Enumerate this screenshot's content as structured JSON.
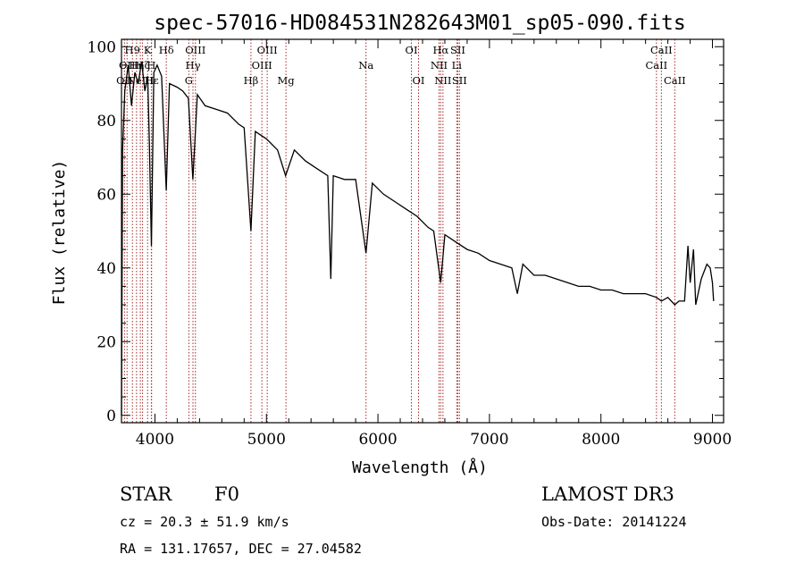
{
  "chart_data": {
    "type": "line",
    "title": "spec-57016-HD084531N282643M01_sp05-090.fits",
    "xlabel": "Wavelength (Å)",
    "ylabel": "Flux (relative)",
    "xlim": [
      3700,
      9100
    ],
    "ylim": [
      -2,
      102
    ],
    "x_ticks": [
      4000,
      5000,
      6000,
      7000,
      8000,
      9000
    ],
    "y_ticks": [
      0,
      20,
      40,
      60,
      80,
      100
    ],
    "grid": false,
    "series": [
      {
        "name": "flux",
        "x": [
          3700,
          3710,
          3730,
          3760,
          3790,
          3820,
          3850,
          3880,
          3910,
          3935,
          3950,
          3968,
          3990,
          4020,
          4060,
          4101,
          4130,
          4200,
          4250,
          4300,
          4340,
          4380,
          4450,
          4550,
          4650,
          4750,
          4800,
          4861,
          4900,
          4950,
          5000,
          5100,
          5172,
          5250,
          5350,
          5450,
          5550,
          5577,
          5600,
          5700,
          5800,
          5893,
          5950,
          6050,
          6150,
          6250,
          6350,
          6450,
          6500,
          6563,
          6600,
          6700,
          6800,
          6900,
          7000,
          7100,
          7200,
          7250,
          7300,
          7400,
          7500,
          7600,
          7700,
          7800,
          7900,
          8000,
          8100,
          8200,
          8300,
          8400,
          8498,
          8542,
          8600,
          8662,
          8700,
          8750,
          8780,
          8800,
          8830,
          8850,
          8900,
          8950,
          8980,
          9000,
          9010
        ],
        "y": [
          0,
          72,
          88,
          95,
          84,
          93,
          90,
          96,
          88,
          92,
          74,
          46,
          93,
          95,
          92,
          61,
          90,
          89,
          88,
          86,
          64,
          87,
          84,
          83,
          82,
          79,
          78,
          50,
          77,
          76,
          75,
          72,
          65,
          72,
          69,
          67,
          65,
          37,
          65,
          64,
          64,
          44,
          63,
          60,
          58,
          56,
          54,
          51,
          50,
          36,
          49,
          47,
          45,
          44,
          42,
          41,
          40,
          33,
          41,
          38,
          38,
          37,
          36,
          35,
          35,
          34,
          34,
          33,
          33,
          33,
          32,
          31,
          32,
          30,
          31,
          31,
          46,
          36,
          45,
          30,
          37,
          41,
          40,
          36,
          31
        ]
      }
    ],
    "emission_lines": [
      {
        "wavelength": 3727,
        "label": "OII",
        "row": 3
      },
      {
        "wavelength": 3750,
        "label": "OII",
        "row": 2
      },
      {
        "wavelength": 3798,
        "label": "H9",
        "row": 1
      },
      {
        "wavelength": 3835,
        "label": "Hη",
        "row": 2
      },
      {
        "wavelength": 3869,
        "label": "NeIII",
        "row": 3
      },
      {
        "wavelength": 3889,
        "label": "Hζ",
        "row": 2
      },
      {
        "wavelength": 3934,
        "label": "K",
        "row": 1
      },
      {
        "wavelength": 3968,
        "label": "H",
        "row": 2
      },
      {
        "wavelength": 3970,
        "label": "Hε",
        "row": 3
      },
      {
        "wavelength": 4102,
        "label": "Hδ",
        "row": 1
      },
      {
        "wavelength": 4304,
        "label": "G",
        "row": 3
      },
      {
        "wavelength": 4341,
        "label": "Hγ",
        "row": 2
      },
      {
        "wavelength": 4363,
        "label": "OIII",
        "row": 1
      },
      {
        "wavelength": 4861,
        "label": "Hβ",
        "row": 3
      },
      {
        "wavelength": 4959,
        "label": "OIII",
        "row": 2
      },
      {
        "wavelength": 5007,
        "label": "OIII",
        "row": 1
      },
      {
        "wavelength": 5175,
        "label": "Mg",
        "row": 3
      },
      {
        "wavelength": 5893,
        "label": "Na",
        "row": 2
      },
      {
        "wavelength": 6300,
        "label": "OI",
        "row": 1
      },
      {
        "wavelength": 6364,
        "label": "OI",
        "row": 3
      },
      {
        "wavelength": 6548,
        "label": "NII",
        "row": 2
      },
      {
        "wavelength": 6563,
        "label": "Hα",
        "row": 1
      },
      {
        "wavelength": 6583,
        "label": "NII",
        "row": 3
      },
      {
        "wavelength": 6707,
        "label": "Li",
        "row": 2
      },
      {
        "wavelength": 6716,
        "label": "SII",
        "row": 1
      },
      {
        "wavelength": 6731,
        "label": "SII",
        "row": 3
      },
      {
        "wavelength": 8498,
        "label": "CaII",
        "row": 2
      },
      {
        "wavelength": 8542,
        "label": "CaII",
        "row": 1
      },
      {
        "wavelength": 8662,
        "label": "CaII",
        "row": 3
      }
    ]
  },
  "info": {
    "object_class": "STAR",
    "subclass": "F0",
    "survey": "LAMOST DR3",
    "redshift": "cz = 20.3 ± 51.9 km/s",
    "obs_date": "Obs-Date: 20141224",
    "coordinates": "RA = 131.17657, DEC =  27.04582"
  },
  "colors": {
    "spectrum": "#000000",
    "line_marker": "#a52a2a",
    "axes": "#000000"
  }
}
